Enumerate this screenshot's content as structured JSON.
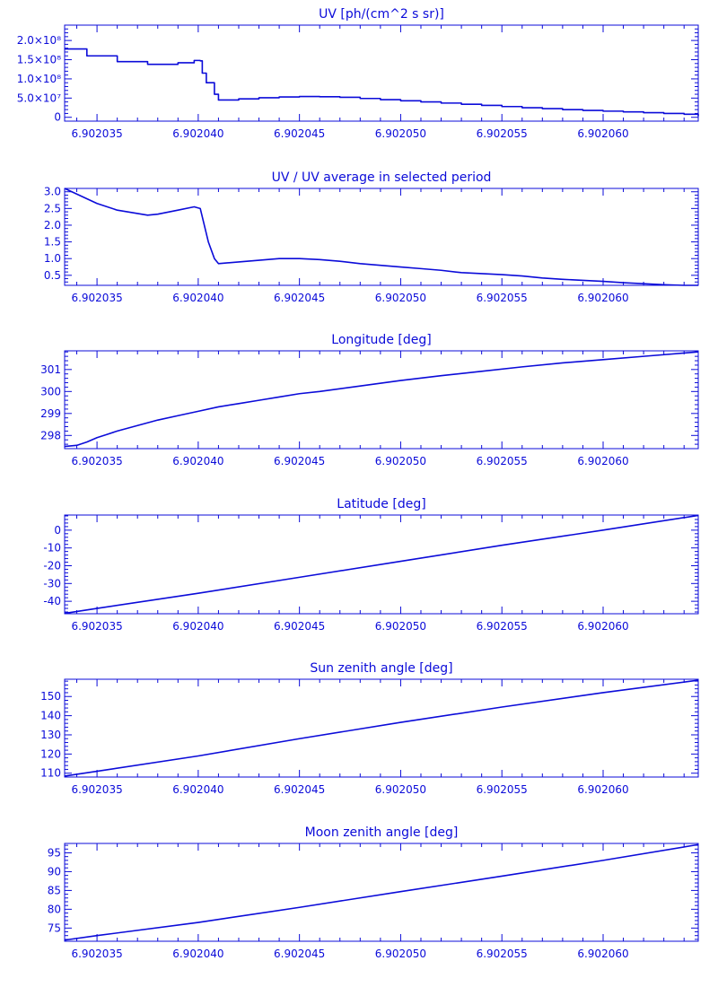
{
  "style": {
    "color": "#0b0bd9",
    "background": "#ffffff"
  },
  "chart_data": [
    {
      "type": "line",
      "title": "UV [ph/(cm^2 s sr)]",
      "xlim": [
        6.9020334,
        6.9020647
      ],
      "ylim": [
        -10000000,
        240000000
      ],
      "x_ticks": [
        6.902035,
        6.90204,
        6.902045,
        6.90205,
        6.902055,
        6.90206
      ],
      "x_tick_labels": [
        "6.902035",
        "6.902040",
        "6.902045",
        "6.902050",
        "6.902055",
        "6.902060"
      ],
      "y_ticks": [
        0,
        50000000,
        100000000,
        150000000,
        200000000
      ],
      "y_tick_labels": [
        "0",
        "5.0×10⁷",
        "1.0×10⁸",
        "1.5×10⁸",
        "2.0×10⁸"
      ],
      "grid": false,
      "step": true,
      "series": [
        {
          "x": [
            6.9020334,
            6.9020345,
            6.902036,
            6.9020375,
            6.902039,
            6.9020398,
            6.9020401,
            6.9020402,
            6.9020404,
            6.9020408,
            6.902041,
            6.902042,
            6.902043,
            6.902044,
            6.902045,
            6.902046,
            6.902047,
            6.902048,
            6.902049,
            6.90205,
            6.902051,
            6.902052,
            6.902053,
            6.902054,
            6.902055,
            6.902056,
            6.902057,
            6.902058,
            6.902059,
            6.90206,
            6.902061,
            6.902062,
            6.902063,
            6.902064,
            6.9020647
          ],
          "y": [
            178000000,
            160000000,
            145000000,
            138000000,
            142000000,
            148000000,
            147000000,
            115000000,
            90000000,
            60000000,
            45000000,
            48000000,
            51000000,
            53000000,
            54000000,
            53500000,
            52000000,
            49000000,
            46000000,
            43000000,
            40000000,
            37000000,
            34000000,
            31000000,
            28000000,
            25000000,
            22500000,
            20000000,
            18000000,
            16000000,
            14000000,
            12000000,
            10000000,
            8000000,
            3000000
          ]
        }
      ]
    },
    {
      "type": "line",
      "title": "UV / UV average in selected period",
      "xlim": [
        6.9020334,
        6.9020647
      ],
      "ylim": [
        0.2,
        3.1
      ],
      "x_ticks": [
        6.902035,
        6.90204,
        6.902045,
        6.90205,
        6.902055,
        6.90206
      ],
      "x_tick_labels": [
        "6.902035",
        "6.902040",
        "6.902045",
        "6.902050",
        "6.902055",
        "6.902060"
      ],
      "y_ticks": [
        0.5,
        1.0,
        1.5,
        2.0,
        2.5,
        3.0
      ],
      "y_tick_labels": [
        "0.5",
        "1.0",
        "1.5",
        "2.0",
        "2.5",
        "3.0"
      ],
      "grid": false,
      "series": [
        {
          "x": [
            6.9020334,
            6.902035,
            6.902036,
            6.902037,
            6.9020375,
            6.902038,
            6.902039,
            6.9020398,
            6.9020401,
            6.9020405,
            6.9020408,
            6.902041,
            6.902042,
            6.902043,
            6.902044,
            6.902045,
            6.902046,
            6.902047,
            6.902048,
            6.902049,
            6.90205,
            6.902051,
            6.902052,
            6.902053,
            6.902054,
            6.902055,
            6.902056,
            6.902057,
            6.902058,
            6.902059,
            6.90206,
            6.902061,
            6.902062,
            6.902063,
            6.902064,
            6.9020647
          ],
          "y": [
            3.1,
            2.65,
            2.45,
            2.35,
            2.3,
            2.33,
            2.45,
            2.55,
            2.5,
            1.5,
            1.0,
            0.85,
            0.9,
            0.95,
            1.0,
            1.0,
            0.97,
            0.92,
            0.85,
            0.8,
            0.75,
            0.7,
            0.65,
            0.58,
            0.55,
            0.52,
            0.48,
            0.42,
            0.38,
            0.35,
            0.32,
            0.28,
            0.25,
            0.22,
            0.2,
            0.2
          ]
        }
      ]
    },
    {
      "type": "line",
      "title": "Longitude [deg]",
      "xlim": [
        6.9020334,
        6.9020647
      ],
      "ylim": [
        297.4,
        301.85
      ],
      "x_ticks": [
        6.902035,
        6.90204,
        6.902045,
        6.90205,
        6.902055,
        6.90206
      ],
      "x_tick_labels": [
        "6.902035",
        "6.902040",
        "6.902045",
        "6.902050",
        "6.902055",
        "6.902060"
      ],
      "y_ticks": [
        298,
        299,
        300,
        301
      ],
      "y_tick_labels": [
        "298",
        "299",
        "300",
        "301"
      ],
      "grid": false,
      "series": [
        {
          "x": [
            6.9020334,
            6.902034,
            6.9020345,
            6.902035,
            6.9020355,
            6.902036,
            6.902037,
            6.902038,
            6.902039,
            6.90204,
            6.902041,
            6.902042,
            6.902043,
            6.902044,
            6.902045,
            6.902046,
            6.902048,
            6.90205,
            6.902052,
            6.902054,
            6.902056,
            6.902058,
            6.90206,
            6.902062,
            6.902064,
            6.9020647
          ],
          "y": [
            297.5,
            297.55,
            297.7,
            297.9,
            298.05,
            298.2,
            298.45,
            298.7,
            298.9,
            299.1,
            299.3,
            299.45,
            299.6,
            299.75,
            299.9,
            300.0,
            300.25,
            300.5,
            300.72,
            300.92,
            301.12,
            301.3,
            301.45,
            301.6,
            301.75,
            301.8
          ]
        }
      ]
    },
    {
      "type": "line",
      "title": "Latitude [deg]",
      "xlim": [
        6.9020334,
        6.9020647
      ],
      "ylim": [
        -47,
        8.5
      ],
      "x_ticks": [
        6.902035,
        6.90204,
        6.902045,
        6.90205,
        6.902055,
        6.90206
      ],
      "x_tick_labels": [
        "6.902035",
        "6.902040",
        "6.902045",
        "6.902050",
        "6.902055",
        "6.902060"
      ],
      "y_ticks": [
        -40,
        -30,
        -20,
        -10,
        0
      ],
      "y_tick_labels": [
        "-40",
        "-30",
        "-20",
        "-10",
        "0"
      ],
      "grid": false,
      "series": [
        {
          "x": [
            6.9020334,
            6.902035,
            6.90204,
            6.902045,
            6.90205,
            6.902055,
            6.90206,
            6.9020647
          ],
          "y": [
            -46.8,
            -44,
            -35.5,
            -26.5,
            -17.5,
            -8.5,
            0,
            8.3
          ]
        }
      ]
    },
    {
      "type": "line",
      "title": "Sun zenith angle [deg]",
      "xlim": [
        6.9020334,
        6.9020647
      ],
      "ylim": [
        108,
        159
      ],
      "x_ticks": [
        6.902035,
        6.90204,
        6.902045,
        6.90205,
        6.902055,
        6.90206
      ],
      "x_tick_labels": [
        "6.902035",
        "6.902040",
        "6.902045",
        "6.902050",
        "6.902055",
        "6.902060"
      ],
      "y_ticks": [
        110,
        120,
        130,
        140,
        150
      ],
      "y_tick_labels": [
        "110",
        "120",
        "130",
        "140",
        "150"
      ],
      "grid": false,
      "series": [
        {
          "x": [
            6.9020334,
            6.902035,
            6.90204,
            6.902045,
            6.90205,
            6.902055,
            6.90206,
            6.9020647
          ],
          "y": [
            108.5,
            111,
            119,
            128,
            136.5,
            144.5,
            152,
            158.5
          ]
        }
      ]
    },
    {
      "type": "line",
      "title": "Moon zenith angle [deg]",
      "xlim": [
        6.9020334,
        6.9020647
      ],
      "ylim": [
        71.5,
        97.5
      ],
      "x_ticks": [
        6.902035,
        6.90204,
        6.902045,
        6.90205,
        6.902055,
        6.90206
      ],
      "x_tick_labels": [
        "6.902035",
        "6.902040",
        "6.902045",
        "6.902050",
        "6.902055",
        "6.902060"
      ],
      "y_ticks": [
        75,
        80,
        85,
        90,
        95
      ],
      "y_tick_labels": [
        "75",
        "80",
        "85",
        "90",
        "95"
      ],
      "grid": false,
      "series": [
        {
          "x": [
            6.9020334,
            6.902035,
            6.90204,
            6.902045,
            6.90205,
            6.902055,
            6.90206,
            6.9020647
          ],
          "y": [
            71.8,
            73,
            76.5,
            80.5,
            84.7,
            88.8,
            93,
            97.2
          ]
        }
      ]
    }
  ]
}
